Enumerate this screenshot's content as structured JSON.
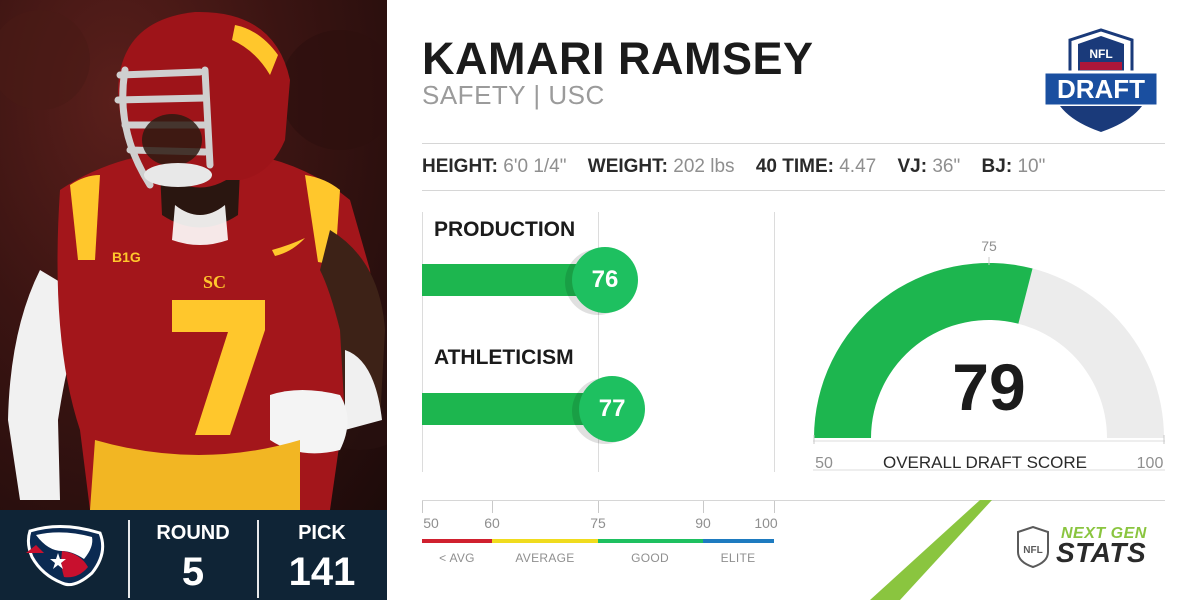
{
  "player": {
    "name": "KAMARI RAMSEY",
    "position_school": "SAFETY | USC",
    "jersey_number": "7"
  },
  "draft_logo": {
    "top_text": "NFL",
    "main_text": "DRAFT"
  },
  "team": {
    "name_icon": "houston-texans-logo",
    "round_label": "ROUND",
    "round_value": "5",
    "pick_label": "PICK",
    "pick_value": "141"
  },
  "measurables": [
    {
      "label": "HEIGHT:",
      "value": "6'0 1/4\""
    },
    {
      "label": "WEIGHT:",
      "value": "202 lbs"
    },
    {
      "label": "40 TIME:",
      "value": "4.47"
    },
    {
      "label": "VJ:",
      "value": "36\""
    },
    {
      "label": "BJ:",
      "value": "10\""
    }
  ],
  "scores": {
    "production": {
      "label": "PRODUCTION",
      "value": 76
    },
    "athleticism": {
      "label": "ATHLETICISM",
      "value": 77
    }
  },
  "overall": {
    "label": "OVERALL DRAFT SCORE",
    "value": 79,
    "min": 50,
    "max": 100,
    "marker": 75,
    "min_label": "50",
    "max_label": "100",
    "marker_label": "75"
  },
  "scale": {
    "ticks": [
      "50",
      "60",
      "75",
      "90",
      "100"
    ],
    "tiers": [
      {
        "label": "< AVG",
        "color": "#d0202f"
      },
      {
        "label": "AVERAGE",
        "color": "#f0dc1e"
      },
      {
        "label": "GOOD",
        "color": "#1ec060"
      },
      {
        "label": "ELITE",
        "color": "#1e7bc0"
      }
    ]
  },
  "branding": {
    "next_gen": "NEXT GEN",
    "stats": "STATS",
    "nfl": "NFL"
  },
  "colors": {
    "bar_green": "#1db64f",
    "score_green": "#1ec060",
    "navy": "#0f2436",
    "texans_red": "#c8102e",
    "usc_cardinal": "#990000",
    "usc_gold": "#ffc72c",
    "ngs_green": "#8ac53f"
  }
}
